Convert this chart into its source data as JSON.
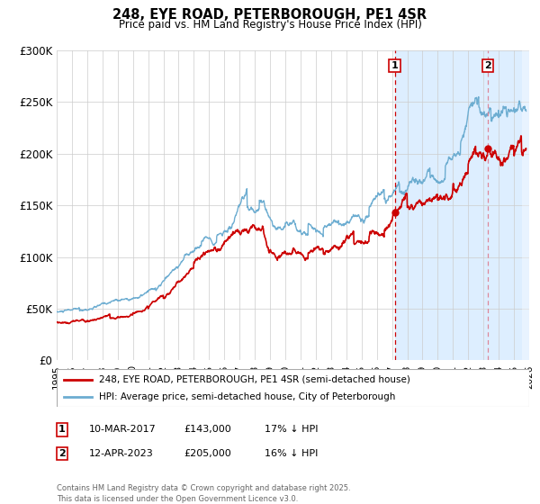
{
  "title": "248, EYE ROAD, PETERBOROUGH, PE1 4SR",
  "subtitle": "Price paid vs. HM Land Registry's House Price Index (HPI)",
  "legend_line1": "248, EYE ROAD, PETERBOROUGH, PE1 4SR (semi-detached house)",
  "legend_line2": "HPI: Average price, semi-detached house, City of Peterborough",
  "annotation1_date": "10-MAR-2017",
  "annotation1_price": "£143,000",
  "annotation1_hpi": "17% ↓ HPI",
  "annotation2_date": "12-APR-2023",
  "annotation2_price": "£205,000",
  "annotation2_hpi": "16% ↓ HPI",
  "sale1_x": 2017.19,
  "sale1_y": 143000,
  "sale2_x": 2023.28,
  "sale2_y": 205000,
  "xmin": 1995,
  "xmax": 2026,
  "ymin": 0,
  "ymax": 300000,
  "hpi_color": "#6dadd1",
  "price_color": "#cc0000",
  "shade_color": "#ddeeff",
  "vline1_color": "#cc0000",
  "vline2_color": "#dd8899",
  "footer": "Contains HM Land Registry data © Crown copyright and database right 2025.\nThis data is licensed under the Open Government Licence v3.0.",
  "yticks": [
    0,
    50000,
    100000,
    150000,
    200000,
    250000,
    300000
  ],
  "ytick_labels": [
    "£0",
    "£50K",
    "£100K",
    "£150K",
    "£200K",
    "£250K",
    "£300K"
  ]
}
